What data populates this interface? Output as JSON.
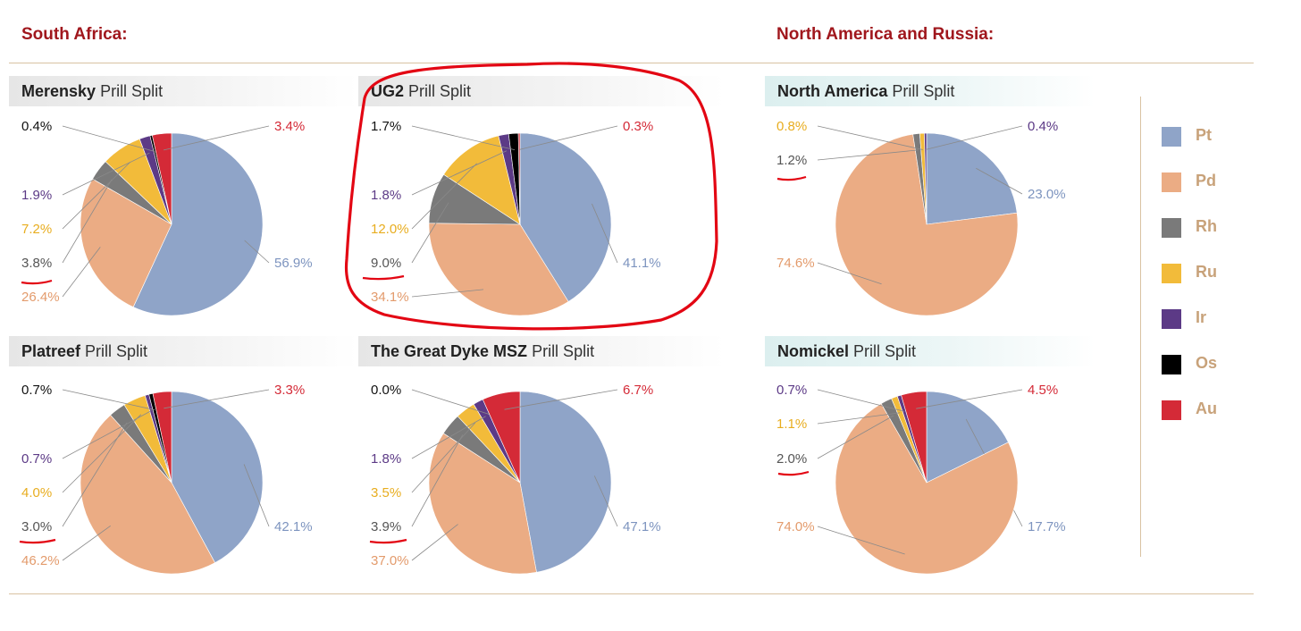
{
  "regions": {
    "south_africa": "South Africa:",
    "north_america": "North America and Russia:"
  },
  "colors": {
    "Pt": "#8fa4c8",
    "Pd": "#ebac84",
    "Rh": "#7a7a7a",
    "Ru": "#f2bb3a",
    "Ir": "#5c3a86",
    "Os": "#000000",
    "Au": "#d42a37",
    "annotation": "#e30613"
  },
  "legend": [
    "Pt",
    "Pd",
    "Rh",
    "Ru",
    "Ir",
    "Os",
    "Au"
  ],
  "panels": [
    {
      "bold": "Merensky",
      "rest": " Prill Split"
    },
    {
      "bold": "UG2",
      "rest": " Prill Split"
    },
    {
      "bold": "North America",
      "rest": " Prill Split"
    },
    {
      "bold": "Platreef",
      "rest": " Prill Split"
    },
    {
      "bold": "The  Great Dyke MSZ",
      "rest": " Prill Split"
    },
    {
      "bold": "Nomickel",
      "rest": " Prill Split"
    }
  ],
  "chart_data": [
    {
      "type": "pie",
      "title": "Merensky Prill Split",
      "slices": [
        {
          "name": "Pt",
          "value": 56.9,
          "label": "56.9%"
        },
        {
          "name": "Pd",
          "value": 26.4,
          "label": "26.4%"
        },
        {
          "name": "Rh",
          "value": 3.8,
          "label": "3.8%"
        },
        {
          "name": "Ru",
          "value": 7.2,
          "label": "7.2%"
        },
        {
          "name": "Ir",
          "value": 1.9,
          "label": "1.9%"
        },
        {
          "name": "Os",
          "value": 0.4,
          "label": "0.4%"
        },
        {
          "name": "Au",
          "value": 3.4,
          "label": "3.4%"
        }
      ]
    },
    {
      "type": "pie",
      "title": "UG2 Prill Split",
      "slices": [
        {
          "name": "Pt",
          "value": 41.1,
          "label": "41.1%"
        },
        {
          "name": "Pd",
          "value": 34.1,
          "label": "34.1%"
        },
        {
          "name": "Rh",
          "value": 9.0,
          "label": "9.0%"
        },
        {
          "name": "Ru",
          "value": 12.0,
          "label": "12.0%"
        },
        {
          "name": "Ir",
          "value": 1.8,
          "label": "1.8%"
        },
        {
          "name": "Os",
          "value": 1.7,
          "label": "1.7%"
        },
        {
          "name": "Au",
          "value": 0.3,
          "label": "0.3%"
        }
      ]
    },
    {
      "type": "pie",
      "title": "North America Prill Split",
      "slices": [
        {
          "name": "Pt",
          "value": 23.0,
          "label": "23.0%"
        },
        {
          "name": "Pd",
          "value": 74.6,
          "label": "74.6%"
        },
        {
          "name": "Ru",
          "value": 0.8,
          "label": "0.8%"
        },
        {
          "name": "Rh",
          "value": 1.2,
          "label": "1.2%"
        },
        {
          "name": "Ir",
          "value": 0.4,
          "label": "0.4%"
        }
      ]
    },
    {
      "type": "pie",
      "title": "Platreef Prill Split",
      "slices": [
        {
          "name": "Pt",
          "value": 42.1,
          "label": "42.1%"
        },
        {
          "name": "Pd",
          "value": 46.2,
          "label": "46.2%"
        },
        {
          "name": "Rh",
          "value": 3.0,
          "label": "3.0%"
        },
        {
          "name": "Ru",
          "value": 4.0,
          "label": "4.0%"
        },
        {
          "name": "Ir",
          "value": 0.7,
          "label": "0.7%"
        },
        {
          "name": "Os",
          "value": 0.7,
          "label": "0.7%"
        },
        {
          "name": "Au",
          "value": 3.3,
          "label": "3.3%"
        }
      ]
    },
    {
      "type": "pie",
      "title": "The  Great Dyke MSZ Prill Split",
      "slices": [
        {
          "name": "Pt",
          "value": 47.1,
          "label": "47.1%"
        },
        {
          "name": "Pd",
          "value": 37.0,
          "label": "37.0%"
        },
        {
          "name": "Rh",
          "value": 3.9,
          "label": "3.9%"
        },
        {
          "name": "Ru",
          "value": 3.5,
          "label": "3.5%"
        },
        {
          "name": "Ir",
          "value": 1.8,
          "label": "1.8%"
        },
        {
          "name": "Os",
          "value": 0.0,
          "label": "0.0%"
        },
        {
          "name": "Au",
          "value": 6.7,
          "label": "6.7%"
        }
      ]
    },
    {
      "type": "pie",
      "title": "Nomickel Prill Split",
      "slices": [
        {
          "name": "Pt",
          "value": 17.7,
          "label": "17.7%"
        },
        {
          "name": "Pd",
          "value": 74.0,
          "label": "74.0%"
        },
        {
          "name": "Rh",
          "value": 2.0,
          "label": "2.0%"
        },
        {
          "name": "Ru",
          "value": 1.1,
          "label": "1.1%"
        },
        {
          "name": "Ir",
          "value": 0.7,
          "label": "0.7%"
        },
        {
          "name": "Au",
          "value": 4.5,
          "label": "4.5%"
        }
      ]
    }
  ]
}
